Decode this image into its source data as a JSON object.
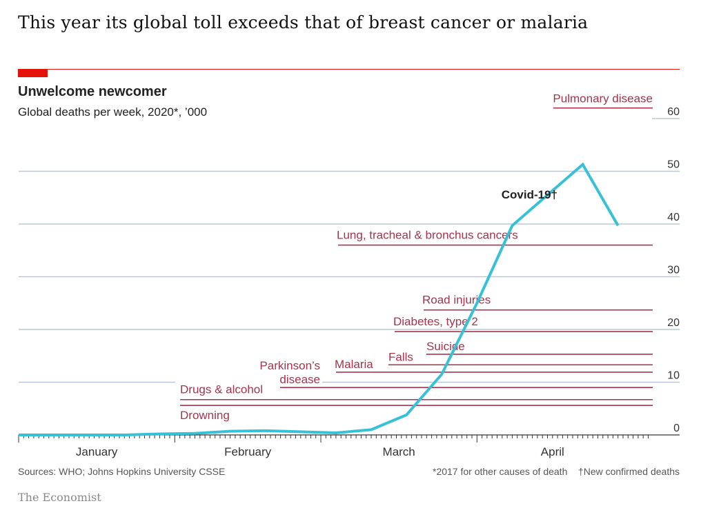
{
  "headline": "This year its global toll exceeds that of breast cancer or malaria",
  "chart_data": {
    "type": "line",
    "title": "Unwelcome newcomer",
    "subtitle": "Global deaths per week, 2020*, ’000",
    "xlabel": "",
    "ylabel": "",
    "ylim": [
      0,
      60
    ],
    "yticks": [
      0,
      10,
      20,
      30,
      40,
      50,
      60
    ],
    "x_domain_days": [
      0,
      125
    ],
    "months": [
      {
        "label": "January",
        "start_day": 0
      },
      {
        "label": "February",
        "start_day": 31
      },
      {
        "label": "March",
        "start_day": 60
      },
      {
        "label": "April",
        "start_day": 91
      }
    ],
    "grid": true,
    "series": [
      {
        "name": "Covid-19†",
        "color": "#36c1d6",
        "x_days": [
          0,
          7,
          14,
          21,
          28,
          35,
          42,
          49,
          56,
          63,
          70,
          77,
          84,
          91,
          98,
          105,
          112,
          119
        ],
        "values": [
          0.0,
          0.0,
          0.0,
          0.0,
          0.2,
          0.3,
          0.7,
          0.8,
          0.6,
          0.4,
          1.0,
          3.8,
          11.5,
          25.0,
          39.7,
          45.5,
          51.3,
          39.7
        ]
      }
    ],
    "reference_lines": [
      {
        "label": "Pulmonary disease",
        "value": 62.0
      },
      {
        "label": "Lung, tracheal & bronchus cancers",
        "value": 36.0
      },
      {
        "label": "Road injuries",
        "value": 23.7
      },
      {
        "label": "Diabetes, type 2",
        "value": 19.6
      },
      {
        "label": "Suicide",
        "value": 15.3
      },
      {
        "label": "Falls",
        "value": 13.3
      },
      {
        "label": "Malaria",
        "value": 11.9
      },
      {
        "label": "Parkinson’s disease",
        "label_lines": [
          "Parkinson’s",
          "disease"
        ],
        "value": 9.0
      },
      {
        "label": "Drugs & alcohol",
        "value": 6.7
      },
      {
        "label": "Drowning",
        "value": 5.6
      }
    ],
    "reference_color": "#a8334a",
    "grid_color": "#b9c8d4",
    "accent_color": "#e3120b"
  },
  "footer": {
    "sources": "Sources: WHO; Johns Hopkins University CSSE",
    "note_star": "*2017 for other causes of death",
    "note_dagger": "†New confirmed deaths",
    "brand": "The Economist"
  }
}
